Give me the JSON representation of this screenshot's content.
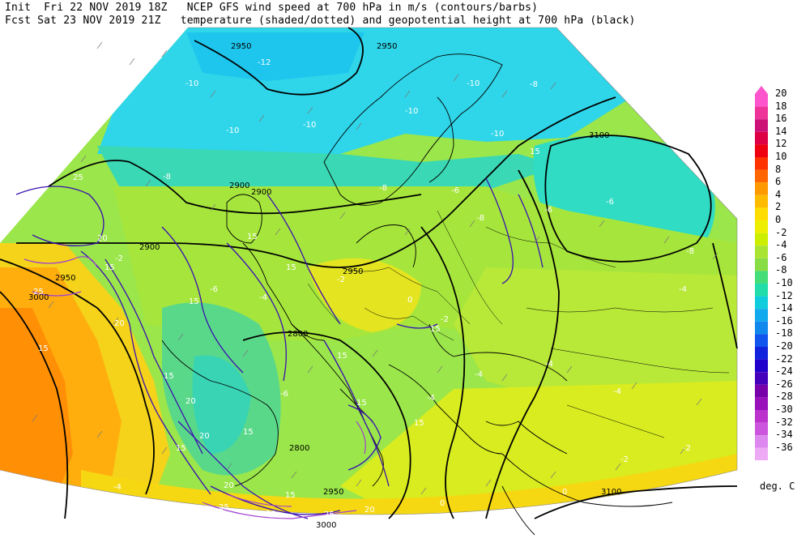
{
  "header": {
    "line1": "Init  Fri 22 NOV 2019 18Z   NCEP GFS wind speed at 700 hPa in m/s (contours/barbs)",
    "line2": "Fcst Sat 23 NOV 2019 21Z   temperature (shaded/dotted) and geopotential height at 700 hPa (black)"
  },
  "legend": {
    "unit": "deg. C",
    "items": [
      {
        "label": "20",
        "color": "#ff55cc"
      },
      {
        "label": "18",
        "color": "#ee3399"
      },
      {
        "label": "16",
        "color": "#cc1177"
      },
      {
        "label": "14",
        "color": "#dd0044"
      },
      {
        "label": "12",
        "color": "#ee0011"
      },
      {
        "label": "10",
        "color": "#ff3300"
      },
      {
        "label": "8",
        "color": "#ff6600"
      },
      {
        "label": "6",
        "color": "#ff9900"
      },
      {
        "label": "4",
        "color": "#ffbb00"
      },
      {
        "label": "2",
        "color": "#ffdd00"
      },
      {
        "label": "0",
        "color": "#eeee00"
      },
      {
        "label": "-2",
        "color": "#ccee00"
      },
      {
        "label": "-4",
        "color": "#aae433"
      },
      {
        "label": "-6",
        "color": "#88dd44"
      },
      {
        "label": "-8",
        "color": "#44dd77"
      },
      {
        "label": "-10",
        "color": "#22ddaa"
      },
      {
        "label": "-12",
        "color": "#11ccdd"
      },
      {
        "label": "-14",
        "color": "#11aaee"
      },
      {
        "label": "-16",
        "color": "#1188ee"
      },
      {
        "label": "-18",
        "color": "#1155ee"
      },
      {
        "label": "-20",
        "color": "#1122dd"
      },
      {
        "label": "-22",
        "color": "#2200cc"
      },
      {
        "label": "-24",
        "color": "#4400bb"
      },
      {
        "label": "-26",
        "color": "#7700aa"
      },
      {
        "label": "-28",
        "color": "#9911bb"
      },
      {
        "label": "-30",
        "color": "#bb33cc"
      },
      {
        "label": "-32",
        "color": "#cc55dd"
      },
      {
        "label": "-34",
        "color": "#dd88ee"
      },
      {
        "label": "-36",
        "color": "#eeaaf5"
      }
    ]
  },
  "map": {
    "height_labels": [
      "2950",
      "2950",
      "3100",
      "2900",
      "2950",
      "2900",
      "2800",
      "2950",
      "3000",
      "2800",
      "2950",
      "3000",
      "3100",
      "2900"
    ],
    "temp_labels": [
      "-12",
      "-10",
      "-10",
      "-10",
      "-8",
      "-8",
      "-10",
      "-10",
      "-6",
      "-8",
      "-6",
      "-8",
      "-4",
      "-2",
      "-4",
      "-2",
      "0",
      "-2",
      "-4",
      "-6",
      "-4",
      "-4",
      "-2",
      "0",
      "0",
      "-4",
      "-6",
      "-8",
      "-10",
      "-6",
      "-4",
      "-2"
    ],
    "wind_labels": [
      "25",
      "20",
      "15",
      "15",
      "25",
      "20",
      "15",
      "15",
      "20",
      "15",
      "15",
      "20",
      "15",
      "15",
      "20",
      "15",
      "20",
      "25",
      "20",
      "25",
      "15",
      "15",
      "20",
      "15",
      "15",
      "15"
    ]
  }
}
